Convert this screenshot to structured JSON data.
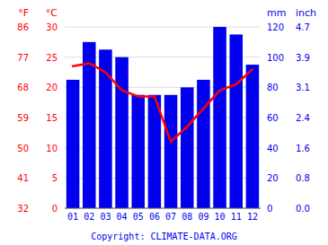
{
  "chart_data": {
    "type": "bar",
    "categories": [
      "01",
      "02",
      "03",
      "04",
      "05",
      "06",
      "07",
      "08",
      "09",
      "10",
      "11",
      "12"
    ],
    "series": [
      {
        "type": "bar",
        "color": "#0000ee",
        "values": [
          85,
          110,
          105,
          100,
          75,
          75,
          75,
          80,
          85,
          120,
          115,
          95
        ]
      },
      {
        "type": "line",
        "color": "#ff0000",
        "axis": "y2",
        "values": [
          23.5,
          24.0,
          22.5,
          19.5,
          18.5,
          18.5,
          11.0,
          13.5,
          16.5,
          19.5,
          20.5,
          23.0
        ]
      }
    ],
    "ylabel": "mm",
    "ylim": [
      0,
      120
    ],
    "yticks": [
      0,
      20,
      40,
      60,
      80,
      100,
      120
    ],
    "ylabel_inch": "inch",
    "yticks_inch": [
      {
        "value": 0,
        "label": "0.0"
      },
      {
        "value": 20,
        "label": "0.8"
      },
      {
        "value": 40,
        "label": "1.6"
      },
      {
        "value": 60,
        "label": "2.4"
      },
      {
        "value": 80,
        "label": "3.1"
      },
      {
        "value": 100,
        "label": "3.9"
      },
      {
        "value": 120,
        "label": "4.7"
      }
    ],
    "y2label": "°C",
    "y2lim": [
      0,
      30
    ],
    "y2ticks": [
      0,
      5,
      10,
      15,
      20,
      25,
      30
    ],
    "y2label_f": "°F",
    "y2ticks_f": [
      {
        "value": 0,
        "label": "32"
      },
      {
        "value": 5,
        "label": "41"
      },
      {
        "value": 10,
        "label": "50"
      },
      {
        "value": 15,
        "label": "59"
      },
      {
        "value": 20,
        "label": "68"
      },
      {
        "value": 25,
        "label": "77"
      },
      {
        "value": 30,
        "label": "86"
      }
    ],
    "grid": true,
    "annotations": [
      "Copyright: CLIMATE-DATA.ORG"
    ]
  }
}
